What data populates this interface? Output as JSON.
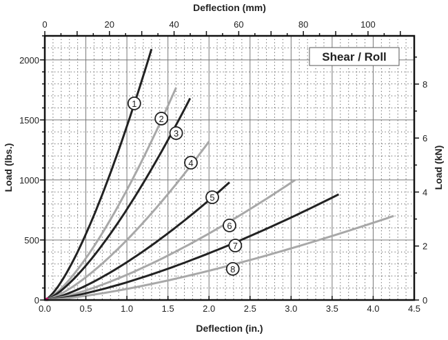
{
  "chart_data": {
    "type": "line",
    "title": "Shear / Roll",
    "xlabel": "Deflection (in.)",
    "ylabel": "Load (lbs.)",
    "x2label": "Deflection (mm)",
    "y2label": "Load (kN)",
    "xlim": [
      0,
      4.5
    ],
    "ylim": [
      0,
      2200
    ],
    "x2lim_mm": [
      0,
      114.3
    ],
    "y2lim_kN": [
      0,
      9.79
    ],
    "xticks": [
      "0.0",
      "0.5",
      "1.0",
      "1.5",
      "2.0",
      "2.5",
      "3.0",
      "3.5",
      "4.0",
      "4.5"
    ],
    "yticks": [
      "0",
      "500",
      "1000",
      "1500",
      "2000"
    ],
    "x2ticks": [
      "0",
      "20",
      "40",
      "60",
      "80",
      "100"
    ],
    "y2ticks": [
      "0",
      "2",
      "4",
      "6",
      "8"
    ],
    "grid": true,
    "legend": "none",
    "colors": {
      "dark": "#222222",
      "light": "#a8a8a8",
      "origin": "#d01070"
    },
    "series": [
      {
        "name": "1",
        "color": "dark",
        "label_at": [
          1.09,
          1638
        ],
        "x": [
          0,
          0.325,
          0.65,
          0.975,
          1.3
        ],
        "y": [
          0,
          300,
          792,
          1396,
          2090
        ]
      },
      {
        "name": "2",
        "color": "light",
        "label_at": [
          1.42,
          1511
        ],
        "x": [
          0,
          0.4,
          0.8,
          1.2,
          1.6
        ],
        "y": [
          0,
          254,
          671,
          1182,
          1770
        ]
      },
      {
        "name": "3",
        "color": "dark",
        "label_at": [
          1.6,
          1390
        ],
        "x": [
          0,
          0.4425,
          0.885,
          1.3275,
          1.77
        ],
        "y": [
          0,
          241,
          637,
          1122,
          1680
        ]
      },
      {
        "name": "4",
        "color": "light",
        "label_at": [
          1.78,
          1144
        ],
        "x": [
          0,
          0.5,
          1.0,
          1.5,
          2.0
        ],
        "y": [
          0,
          190,
          500,
          882,
          1320
        ]
      },
      {
        "name": "5",
        "color": "dark",
        "label_at": [
          2.04,
          856
        ],
        "x": [
          0,
          0.5625,
          1.125,
          1.6875,
          2.25
        ],
        "y": [
          0,
          141,
          371,
          655,
          980
        ]
      },
      {
        "name": "6",
        "color": "light",
        "label_at": [
          2.25,
          621
        ],
        "x": [
          0,
          0.7625,
          1.525,
          2.2875,
          3.05
        ],
        "y": [
          0,
          144,
          379,
          668,
          1000
        ]
      },
      {
        "name": "7",
        "color": "dark",
        "label_at": [
          2.32,
          454
        ],
        "x": [
          0,
          0.895,
          1.79,
          2.685,
          3.58
        ],
        "y": [
          0,
          126,
          334,
          588,
          880
        ]
      },
      {
        "name": "8",
        "color": "light",
        "label_at": [
          2.29,
          259
        ],
        "x": [
          0,
          1.0625,
          2.125,
          3.1875,
          4.25
        ],
        "y": [
          0,
          101,
          265,
          468,
          700
        ]
      }
    ]
  }
}
